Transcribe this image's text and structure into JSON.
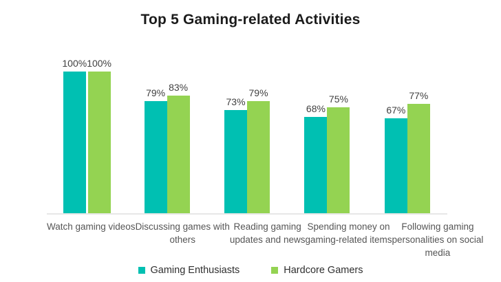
{
  "title": "Top 5 Gaming-related Activities",
  "colors": {
    "series_teal": "#00C0B2",
    "series_green": "#94D352",
    "baseline": "#E7E7E7",
    "title_text": "#1B1B1B",
    "value_label_text": "#404040",
    "category_text": "#555555",
    "legend_text": "#2E2E2E",
    "background": "#FFFFFF"
  },
  "chart_data": {
    "type": "bar",
    "title": "Top 5 Gaming-related Activities",
    "categories": [
      "Watch gaming videos",
      "Discussing games with others",
      "Reading gaming updates and news",
      "Spending money on gaming-related items",
      "Following gaming personalities on social media"
    ],
    "category_display": [
      "Watch gaming videos",
      "Discussing games with\nothers",
      "Reading gaming\nupdates and news",
      "Spending money on\ngaming-related items",
      "Following gaming\npersonalities on social\nmedia"
    ],
    "series": [
      {
        "name": "Gaming Enthusiasts",
        "color": "#00C0B2",
        "values": [
          100,
          79,
          73,
          68,
          67
        ]
      },
      {
        "name": "Hardcore Gamers",
        "color": "#94D352",
        "values": [
          100,
          83,
          79,
          75,
          77
        ]
      }
    ],
    "value_suffix": "%",
    "data_labels": true,
    "ylim": [
      0,
      100
    ],
    "grid": false,
    "axis_ticks": false,
    "legend_position": "bottom"
  }
}
